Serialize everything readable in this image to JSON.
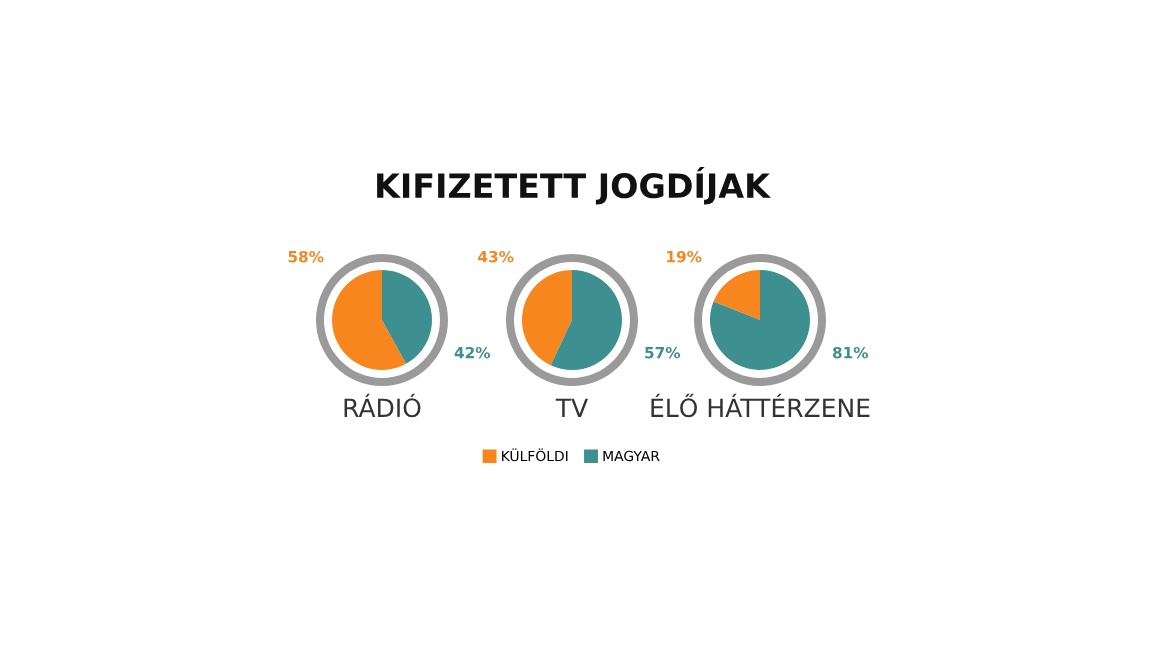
{
  "chart_data": [
    {
      "type": "pie",
      "xlabel": "RÁDIÓ",
      "categories": [
        "KÜLFÖLDI",
        "MAGYAR"
      ],
      "values": [
        58,
        42
      ],
      "value_labels": [
        "58%",
        "42%"
      ],
      "colors": [
        "#f7861f",
        "#3d8f90"
      ],
      "legend": "bottom"
    },
    {
      "type": "pie",
      "title": "KIFIZETETT JOGDÍJAK",
      "xlabel": "TV",
      "categories": [
        null,
        null
      ],
      "values": [
        43,
        57
      ],
      "value_labels": [
        "43%",
        "57%"
      ],
      "colors": [
        "#f7861f",
        "#3d8f90"
      ]
    },
    {
      "type": "pie",
      "xlabel": "ÉLŐ HÁTTÉRZENE",
      "categories": [
        null,
        null
      ],
      "values": [
        19,
        81
      ],
      "value_labels": [
        "19%",
        "81%"
      ],
      "colors": [
        "#f7861f",
        "#3d8f90"
      ]
    }
  ]
}
